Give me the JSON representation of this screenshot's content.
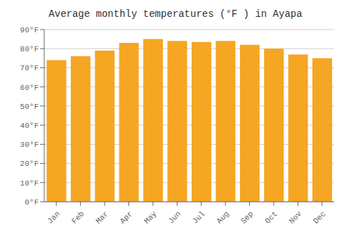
{
  "chart_data": {
    "type": "bar",
    "title": "Average monthly temperatures (°F ) in Ayapa",
    "categories": [
      "Jan",
      "Feb",
      "Mar",
      "Apr",
      "May",
      "Jun",
      "Jul",
      "Aug",
      "Sep",
      "Oct",
      "Nov",
      "Dec"
    ],
    "values": [
      74,
      76,
      79,
      83,
      85,
      84,
      83.5,
      84,
      82,
      80,
      77,
      75
    ],
    "color": "#F5A623",
    "ylim": [
      0,
      90
    ],
    "yticks": [
      {
        "value": 0,
        "label": "0°F"
      },
      {
        "value": 10,
        "label": "10°F"
      },
      {
        "value": 20,
        "label": "20°F"
      },
      {
        "value": 30,
        "label": "30°F"
      },
      {
        "value": 40,
        "label": "40°F"
      },
      {
        "value": 50,
        "label": "50°F"
      },
      {
        "value": 60,
        "label": "60°F"
      },
      {
        "value": 70,
        "label": "70°F"
      },
      {
        "value": 80,
        "label": "80°F"
      },
      {
        "value": 90,
        "label": "90°F"
      }
    ],
    "grid": true
  }
}
